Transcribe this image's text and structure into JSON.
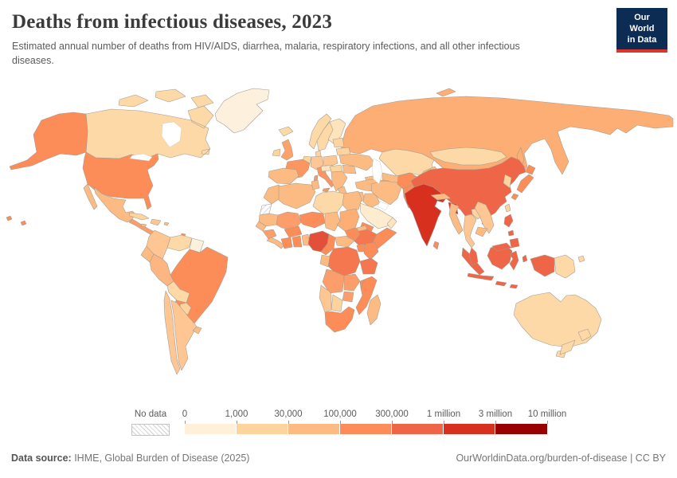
{
  "header": {
    "title": "Deaths from infectious diseases, 2023",
    "subtitle": "Estimated annual number of deaths from HIV/AIDS, diarrhea, malaria, respiratory infections, and all other infectious diseases.",
    "logo": {
      "line1": "Our World",
      "line2": "in Data",
      "bg_color": "#0d2c54",
      "accent_color": "#dc352b"
    }
  },
  "legend": {
    "no_data_label": "No data",
    "tick_labels": [
      "0",
      "1,000",
      "30,000",
      "100,000",
      "300,000",
      "1 million",
      "3 million",
      "10 million"
    ],
    "bin_colors": [
      "#fef0d9",
      "#fdd49e",
      "#fdbb84",
      "#fc8d59",
      "#ef6548",
      "#d7301f",
      "#990000"
    ]
  },
  "footer": {
    "source_label": "Data source:",
    "source_text": " IHME, Global Burden of Disease (2025)",
    "credit_text": "OurWorldinData.org/burden-of-disease | CC BY"
  },
  "chart_data": {
    "type": "choropleth",
    "title": "Deaths from infectious diseases, 2023",
    "unit": "deaths",
    "legend_thresholds": [
      "0",
      "1,000",
      "30,000",
      "100,000",
      "300,000",
      "1 million",
      "3 million",
      "10 million"
    ],
    "bins": [
      {
        "range": "0 – 1,000",
        "color": "#fef0d9"
      },
      {
        "range": "1,000 – 30,000",
        "color": "#fdd49e"
      },
      {
        "range": "30,000 – 100,000",
        "color": "#fdbb84"
      },
      {
        "range": "100,000 – 300,000",
        "color": "#fc8d59"
      },
      {
        "range": "300,000 – 1 million",
        "color": "#ef6548"
      },
      {
        "range": "1 million – 3 million",
        "color": "#d7301f"
      },
      {
        "range": "3 million – 10 million",
        "color": "#990000"
      }
    ],
    "no_data": {
      "label": "No data",
      "pattern": "diagonal-hatch"
    },
    "countries": [
      {
        "id": "russia",
        "name": "Russia",
        "bin": "30,000 – 100,000",
        "color": "#fcae75"
      },
      {
        "id": "canada",
        "name": "Canada",
        "bin": "1,000 – 30,000",
        "color": "#fdd9a7"
      },
      {
        "id": "greenland",
        "name": "Greenland",
        "bin": "0 – 1,000",
        "color": "#fdf0dc"
      },
      {
        "id": "usa",
        "name": "United States",
        "bin": "100,000 – 300,000",
        "color": "#fc8d59"
      },
      {
        "id": "mexico",
        "name": "Mexico",
        "bin": "30,000 – 100,000",
        "color": "#fdbb84"
      },
      {
        "id": "central-america",
        "name": "Central America",
        "bin": "100,000 – 300,000",
        "color": "#fc9e6b"
      },
      {
        "id": "cuba",
        "name": "Cuba",
        "bin": "1,000 – 30,000",
        "color": "#fdd49e"
      },
      {
        "id": "hispaniola",
        "name": "Haiti & Dominican Republic",
        "bin": "30,000 – 100,000",
        "color": "#fdc693"
      },
      {
        "id": "jamaica",
        "name": "Jamaica",
        "bin": "30,000 – 100,000",
        "color": "#fdbb84"
      },
      {
        "id": "puerto-rico",
        "name": "Puerto Rico",
        "bin": "30,000 – 100,000",
        "color": "#fdbb84"
      },
      {
        "id": "trinidad",
        "name": "Trinidad & Tobago",
        "bin": "100,000 – 300,000",
        "color": "#fc8d59"
      },
      {
        "id": "colombia",
        "name": "Colombia",
        "bin": "30,000 – 100,000",
        "color": "#fdc693"
      },
      {
        "id": "venezuela",
        "name": "Venezuela",
        "bin": "1,000 – 30,000",
        "color": "#fdd9a7"
      },
      {
        "id": "guyanas",
        "name": "Guyana & Suriname",
        "bin": "0 – 1,000",
        "color": "#fdf0dc"
      },
      {
        "id": "ecuador",
        "name": "Ecuador",
        "bin": "30,000 – 100,000",
        "color": "#fdbb84"
      },
      {
        "id": "peru",
        "name": "Peru",
        "bin": "30,000 – 100,000",
        "color": "#fdb581"
      },
      {
        "id": "brazil",
        "name": "Brazil",
        "bin": "100,000 – 300,000",
        "color": "#fc8d59"
      },
      {
        "id": "bolivia",
        "name": "Bolivia",
        "bin": "1,000 – 30,000",
        "color": "#fdd9a7"
      },
      {
        "id": "paraguay",
        "name": "Paraguay",
        "bin": "1,000 – 30,000",
        "color": "#fdd49e"
      },
      {
        "id": "chile",
        "name": "Chile",
        "bin": "30,000 – 100,000",
        "color": "#fdc693"
      },
      {
        "id": "argentina",
        "name": "Argentina",
        "bin": "30,000 – 100,000",
        "color": "#fdc693"
      },
      {
        "id": "uruguay",
        "name": "Uruguay",
        "bin": "30,000 – 100,000",
        "color": "#fdbb84"
      },
      {
        "id": "iceland",
        "name": "Iceland",
        "bin": "1,000 – 30,000",
        "color": "#fdd9a7"
      },
      {
        "id": "uk",
        "name": "United Kingdom",
        "bin": "100,000 – 300,000",
        "color": "#fca26b"
      },
      {
        "id": "ireland",
        "name": "Ireland",
        "bin": "1,000 – 30,000",
        "color": "#fdd49e"
      },
      {
        "id": "norway",
        "name": "Norway",
        "bin": "1,000 – 30,000",
        "color": "#fdd9a7"
      },
      {
        "id": "sweden",
        "name": "Sweden",
        "bin": "1,000 – 30,000",
        "color": "#fdd9a7"
      },
      {
        "id": "finland",
        "name": "Finland",
        "bin": "1,000 – 30,000",
        "color": "#fde4bd"
      },
      {
        "id": "denmark",
        "name": "Denmark",
        "bin": "1,000 – 30,000",
        "color": "#fdd49e"
      },
      {
        "id": "baltics",
        "name": "Baltic states",
        "bin": "1,000 – 30,000",
        "color": "#fdd49e"
      },
      {
        "id": "belarus",
        "name": "Belarus",
        "bin": "1,000 – 30,000",
        "color": "#fdd49e"
      },
      {
        "id": "poland",
        "name": "Poland",
        "bin": "30,000 – 100,000",
        "color": "#fdc693"
      },
      {
        "id": "germany",
        "name": "Germany",
        "bin": "30,000 – 100,000",
        "color": "#fdc693"
      },
      {
        "id": "benelux",
        "name": "Belgium & Netherlands",
        "bin": "1,000 – 30,000",
        "color": "#fdd49e"
      },
      {
        "id": "france",
        "name": "France",
        "bin": "100,000 – 300,000",
        "color": "#fc9660"
      },
      {
        "id": "spain",
        "name": "Spain",
        "bin": "30,000 – 100,000",
        "color": "#fdbb84"
      },
      {
        "id": "italy",
        "name": "Italy",
        "bin": "100,000 – 300,000",
        "color": "#fc9660"
      },
      {
        "id": "switzerland-austria",
        "name": "Switzerland & Austria",
        "bin": "1,000 – 30,000",
        "color": "#fde4bd"
      },
      {
        "id": "czech-hungary",
        "name": "Czechia, Slovakia & Hungary",
        "bin": "1,000 – 30,000",
        "color": "#fdd49e"
      },
      {
        "id": "balkans",
        "name": "Balkans",
        "bin": "30,000 – 100,000",
        "color": "#fdbb84"
      },
      {
        "id": "greece",
        "name": "Greece",
        "bin": "30,000 – 100,000",
        "color": "#fdbb84"
      },
      {
        "id": "romania",
        "name": "Romania",
        "bin": "30,000 – 100,000",
        "color": "#fdbb84"
      },
      {
        "id": "ukraine",
        "name": "Ukraine",
        "bin": "30,000 – 100,000",
        "color": "#fdbb84"
      },
      {
        "id": "kazakhstan",
        "name": "Kazakhstan",
        "bin": "1,000 – 30,000",
        "color": "#fdd9a7"
      },
      {
        "id": "central-asia",
        "name": "Uzbekistan & Turkmenistan",
        "bin": "30,000 – 100,000",
        "color": "#fdbb84"
      },
      {
        "id": "kyrgyz-tajik",
        "name": "Kyrgyzstan & Tajikistan",
        "bin": "30,000 – 100,000",
        "color": "#fdbb84"
      },
      {
        "id": "caucasus",
        "name": "Caucasus",
        "bin": "30,000 – 100,000",
        "color": "#fdbb84"
      },
      {
        "id": "turkey",
        "name": "Turkey",
        "bin": "30,000 – 100,000",
        "color": "#fdbb84"
      },
      {
        "id": "syria-levant",
        "name": "Syria & Levant",
        "bin": "30,000 – 100,000",
        "color": "#fdbb84"
      },
      {
        "id": "iraq",
        "name": "Iraq",
        "bin": "30,000 – 100,000",
        "color": "#fdbb84"
      },
      {
        "id": "iran",
        "name": "Iran",
        "bin": "30,000 – 100,000",
        "color": "#fdbb84"
      },
      {
        "id": "saudi",
        "name": "Saudi Arabia",
        "bin": "0 – 1,000",
        "color": "#fdeccd"
      },
      {
        "id": "yemen",
        "name": "Yemen",
        "bin": "100,000 – 300,000",
        "color": "#fc8d59"
      },
      {
        "id": "oman",
        "name": "Oman",
        "bin": "1,000 – 30,000",
        "color": "#fde4bd"
      },
      {
        "id": "afghanistan",
        "name": "Afghanistan",
        "bin": "100,000 – 300,000",
        "color": "#fc8d59"
      },
      {
        "id": "pakistan",
        "name": "Pakistan",
        "bin": "100,000 – 300,000",
        "color": "#fc8d59"
      },
      {
        "id": "india",
        "name": "India",
        "bin": "1 million – 3 million",
        "color": "#d7301f"
      },
      {
        "id": "nepal",
        "name": "Nepal",
        "bin": "30,000 – 100,000",
        "color": "#fdbb84"
      },
      {
        "id": "bangladesh",
        "name": "Bangladesh",
        "bin": "1 million – 3 million",
        "color": "#d7301f"
      },
      {
        "id": "sri-lanka",
        "name": "Sri Lanka",
        "bin": "100,000 – 300,000",
        "color": "#fc8d59"
      },
      {
        "id": "china",
        "name": "China",
        "bin": "300,000 – 1 million",
        "color": "#ef6548"
      },
      {
        "id": "mongolia",
        "name": "Mongolia",
        "bin": "1,000 – 30,000",
        "color": "#fdd9a7"
      },
      {
        "id": "korea",
        "name": "Korea",
        "bin": "1,000 – 30,000",
        "color": "#fdd49e"
      },
      {
        "id": "japan",
        "name": "Japan",
        "bin": "100,000 – 300,000",
        "color": "#fc8d59"
      },
      {
        "id": "taiwan",
        "name": "Taiwan",
        "bin": "1,000 – 30,000",
        "color": "#fdd49e"
      },
      {
        "id": "myanmar",
        "name": "Myanmar",
        "bin": "30,000 – 100,000",
        "color": "#fdbb84"
      },
      {
        "id": "thailand",
        "name": "Thailand",
        "bin": "30,000 – 100,000",
        "color": "#fdc693"
      },
      {
        "id": "laos",
        "name": "Laos",
        "bin": "1,000 – 30,000",
        "color": "#fdd49e"
      },
      {
        "id": "vietnam",
        "name": "Vietnam",
        "bin": "30,000 – 100,000",
        "color": "#fdc693"
      },
      {
        "id": "cambodia",
        "name": "Cambodia",
        "bin": "30,000 – 100,000",
        "color": "#fdbb84"
      },
      {
        "id": "indonesia",
        "name": "Indonesia",
        "bin": "300,000 – 1 million",
        "color": "#ef6548"
      },
      {
        "id": "malaysia",
        "name": "Malaysia",
        "bin": "300,000 – 1 million",
        "color": "#ef6548"
      },
      {
        "id": "philippines",
        "name": "Philippines",
        "bin": "300,000 – 1 million",
        "color": "#ef6548"
      },
      {
        "id": "png",
        "name": "Papua New Guinea",
        "bin": "1,000 – 30,000",
        "color": "#fdd9a7"
      },
      {
        "id": "morocco",
        "name": "Morocco",
        "bin": "30,000 – 100,000",
        "color": "#fdbb84"
      },
      {
        "id": "western-sahara",
        "name": "Western Sahara",
        "bin": "No data",
        "color": null
      },
      {
        "id": "algeria",
        "name": "Algeria",
        "bin": "30,000 – 100,000",
        "color": "#fdbb84"
      },
      {
        "id": "tunisia",
        "name": "Tunisia",
        "bin": "30,000 – 100,000",
        "color": "#fdbb84"
      },
      {
        "id": "libya",
        "name": "Libya",
        "bin": "1,000 – 30,000",
        "color": "#fdd9a7"
      },
      {
        "id": "egypt",
        "name": "Egypt",
        "bin": "30,000 – 100,000",
        "color": "#fdbb84"
      },
      {
        "id": "mauritania",
        "name": "Mauritania",
        "bin": "30,000 – 100,000",
        "color": "#fdbb84"
      },
      {
        "id": "mali",
        "name": "Mali",
        "bin": "100,000 – 300,000",
        "color": "#fc9e6b"
      },
      {
        "id": "niger",
        "name": "Niger",
        "bin": "100,000 – 300,000",
        "color": "#fc8d59"
      },
      {
        "id": "chad",
        "name": "Chad",
        "bin": "30,000 – 100,000",
        "color": "#fdbb84"
      },
      {
        "id": "sudan",
        "name": "Sudan",
        "bin": "30,000 – 100,000",
        "color": "#fcae75"
      },
      {
        "id": "eritrea",
        "name": "Eritrea",
        "bin": "30,000 – 100,000",
        "color": "#fdbb84"
      },
      {
        "id": "ethiopia",
        "name": "Ethiopia",
        "bin": "300,000 – 1 million",
        "color": "#f4774f"
      },
      {
        "id": "somalia",
        "name": "Somalia",
        "bin": "100,000 – 300,000",
        "color": "#fc8d59"
      },
      {
        "id": "senegal",
        "name": "Senegal",
        "bin": "30,000 – 100,000",
        "color": "#fdbb84"
      },
      {
        "id": "guinea",
        "name": "Guinea",
        "bin": "100,000 – 300,000",
        "color": "#fc9e6b"
      },
      {
        "id": "sierra-liberia",
        "name": "Sierra Leone & Liberia",
        "bin": "30,000 – 100,000",
        "color": "#fdbb84"
      },
      {
        "id": "ivory-coast",
        "name": "Cote d'Ivoire",
        "bin": "100,000 – 300,000",
        "color": "#fc8d59"
      },
      {
        "id": "ghana",
        "name": "Ghana",
        "bin": "100,000 – 300,000",
        "color": "#fc8d59"
      },
      {
        "id": "togo-benin",
        "name": "Togo & Benin",
        "bin": "30,000 – 100,000",
        "color": "#fdbb84"
      },
      {
        "id": "burkina",
        "name": "Burkina Faso",
        "bin": "100,000 – 300,000",
        "color": "#fc8d59"
      },
      {
        "id": "nigeria",
        "name": "Nigeria",
        "bin": "300,000 – 1 million",
        "color": "#e2503a"
      },
      {
        "id": "cameroon",
        "name": "Cameroon",
        "bin": "100,000 – 300,000",
        "color": "#fc8d59"
      },
      {
        "id": "car",
        "name": "Central African Republic",
        "bin": "30,000 – 100,000",
        "color": "#fdbb84"
      },
      {
        "id": "south-sudan",
        "name": "South Sudan",
        "bin": "100,000 – 300,000",
        "color": "#fc8d59"
      },
      {
        "id": "uganda",
        "name": "Uganda",
        "bin": "100,000 – 300,000",
        "color": "#fc8d59"
      },
      {
        "id": "kenya",
        "name": "Kenya",
        "bin": "100,000 – 300,000",
        "color": "#fc8d59"
      },
      {
        "id": "drc",
        "name": "Democratic Republic of Congo",
        "bin": "300,000 – 1 million",
        "color": "#f4774f"
      },
      {
        "id": "congo-gabon",
        "name": "Congo & Gabon",
        "bin": "30,000 – 100,000",
        "color": "#fdbb84"
      },
      {
        "id": "tanzania",
        "name": "Tanzania",
        "bin": "300,000 – 1 million",
        "color": "#f4774f"
      },
      {
        "id": "angola",
        "name": "Angola",
        "bin": "100,000 – 300,000",
        "color": "#fc9e6b"
      },
      {
        "id": "zambia",
        "name": "Zambia",
        "bin": "100,000 – 300,000",
        "color": "#fc9e6b"
      },
      {
        "id": "malawi",
        "name": "Malawi",
        "bin": "100,000 – 300,000",
        "color": "#fc8d59"
      },
      {
        "id": "mozambique",
        "name": "Mozambique",
        "bin": "100,000 – 300,000",
        "color": "#fc8d59"
      },
      {
        "id": "zimbabwe",
        "name": "Zimbabwe",
        "bin": "100,000 – 300,000",
        "color": "#fc9e6b"
      },
      {
        "id": "botswana",
        "name": "Botswana",
        "bin": "1,000 – 30,000",
        "color": "#fdd49e"
      },
      {
        "id": "namibia",
        "name": "Namibia",
        "bin": "30,000 – 100,000",
        "color": "#fdc693"
      },
      {
        "id": "south-africa",
        "name": "South Africa",
        "bin": "100,000 – 300,000",
        "color": "#fc8d59"
      },
      {
        "id": "madagascar",
        "name": "Madagascar",
        "bin": "30,000 – 100,000",
        "color": "#fdbb84"
      },
      {
        "id": "australia",
        "name": "Australia",
        "bin": "1,000 – 30,000",
        "color": "#fdd9a7"
      },
      {
        "id": "nz",
        "name": "New Zealand",
        "bin": "1,000 – 30,000",
        "color": "#fdd9a7"
      }
    ]
  }
}
